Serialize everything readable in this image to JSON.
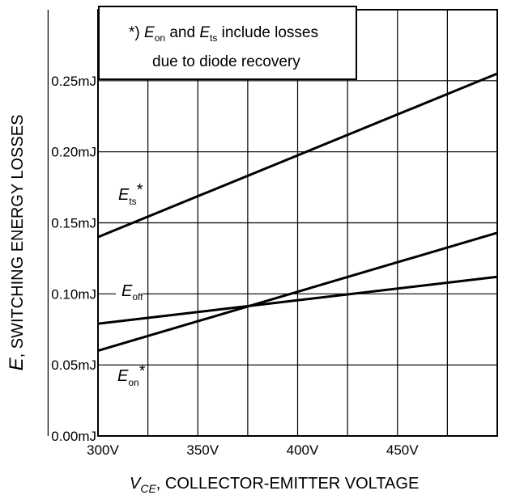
{
  "chart_data": {
    "type": "line",
    "x_unit": "V",
    "y_unit": "mJ",
    "xlim": [
      300,
      500
    ],
    "ylim": [
      0,
      0.3
    ],
    "x_ticks": [
      300,
      350,
      400,
      450
    ],
    "x_tick_labels": [
      "300V",
      "350V",
      "400V",
      "450V"
    ],
    "y_ticks": [
      0,
      0.05,
      0.1,
      0.15,
      0.2,
      0.25
    ],
    "y_tick_labels": [
      "0.00mJ",
      "0.05mJ",
      "0.10mJ",
      "0.15mJ",
      "0.20mJ",
      "0.25mJ"
    ],
    "grid": true,
    "xlabel": {
      "var": "V",
      "sub": "CE",
      "text": ", COLLECTOR-EMITTER VOLTAGE"
    },
    "ylabel": {
      "var": "E",
      "text": ", SWITCHING ENERGY LOSSES"
    },
    "annotation": {
      "line1_prefix": "*) ",
      "line1_var1": "E",
      "line1_sub1": "on",
      "line1_mid": " and ",
      "line1_var2": "E",
      "line1_sub2": "ts",
      "line1_suffix": " include losses",
      "line2": "due to diode recovery"
    },
    "series": [
      {
        "key": "ets",
        "label_var": "E",
        "label_sub": "ts",
        "label_suffix": "*",
        "x": [
          300,
          500
        ],
        "y": [
          0.14,
          0.255
        ]
      },
      {
        "key": "eoff",
        "label_var": "E",
        "label_sub": "off",
        "label_suffix": "",
        "x": [
          300,
          500
        ],
        "y": [
          0.079,
          0.112
        ]
      },
      {
        "key": "eon",
        "label_var": "E",
        "label_sub": "on",
        "label_suffix": "*",
        "x": [
          300,
          500
        ],
        "y": [
          0.06,
          0.143
        ]
      }
    ]
  }
}
